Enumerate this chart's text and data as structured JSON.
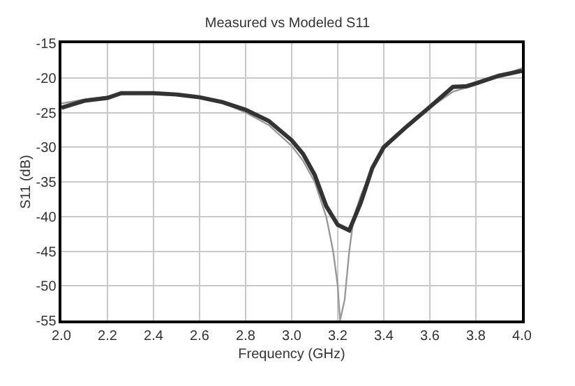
{
  "chart_data": {
    "type": "line",
    "title": "Measured vs Modeled S11",
    "xlabel": "Frequency (GHz)",
    "ylabel": "S11 (dB)",
    "xlim": [
      2.0,
      4.0
    ],
    "xticks": [
      {
        "value": 2.0,
        "label": "2.0"
      },
      2.2,
      2.4,
      2.6,
      2.8,
      {
        "value": 3.0,
        "label": "3.0"
      },
      3.2,
      3.4,
      3.6,
      3.8,
      {
        "value": 4.0,
        "label": "4.0"
      }
    ],
    "ylim": [
      -55,
      -15
    ],
    "yticks": [
      -55,
      -50,
      -45,
      -40,
      -35,
      -30,
      -25,
      -20,
      -15
    ],
    "grid": true,
    "series": [
      {
        "color": "#999999",
        "x": [
          2.0,
          2.1,
          2.2,
          2.3,
          2.4,
          2.5,
          2.6,
          2.7,
          2.8,
          2.9,
          3.0,
          3.05,
          3.1,
          3.15,
          3.18,
          3.2,
          3.21,
          3.23,
          3.25,
          3.27,
          3.3,
          3.35,
          3.4,
          3.5,
          3.6,
          3.7,
          3.8,
          3.9,
          4.0
        ],
        "values": [
          -23.7,
          -23.1,
          -22.7,
          -22.2,
          -22.2,
          -22.4,
          -22.9,
          -23.6,
          -25,
          -26.8,
          -29.8,
          -32,
          -35,
          -40,
          -45,
          -50,
          -55,
          -52,
          -45,
          -40,
          -37,
          -33,
          -30,
          -27,
          -24.3,
          -22,
          -21,
          -19.8,
          -18.6
        ]
      },
      {
        "color": "#333333",
        "x": [
          2.0,
          2.1,
          2.2,
          2.26,
          2.3,
          2.4,
          2.5,
          2.6,
          2.7,
          2.8,
          2.9,
          3.0,
          3.05,
          3.1,
          3.15,
          3.2,
          3.25,
          3.3,
          3.35,
          3.4,
          3.5,
          3.6,
          3.7,
          3.76,
          3.8,
          3.9,
          4.0
        ],
        "values": [
          -24.3,
          -23.3,
          -22.9,
          -22.2,
          -22.2,
          -22.2,
          -22.4,
          -22.8,
          -23.5,
          -24.6,
          -26.2,
          -29,
          -31,
          -34,
          -38.5,
          -41.2,
          -42,
          -38,
          -33,
          -30,
          -27,
          -24.2,
          -21.3,
          -21.2,
          -20.8,
          -19.7,
          -19.0
        ]
      }
    ]
  }
}
